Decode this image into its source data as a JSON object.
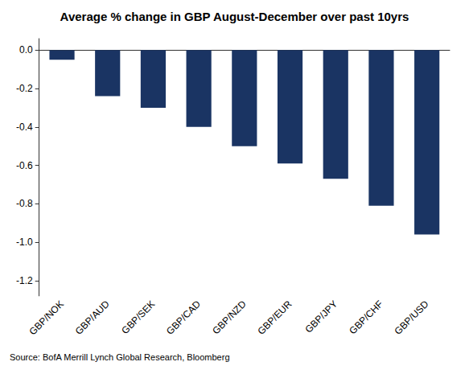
{
  "chart_data": {
    "type": "bar",
    "title": "Average % change in GBP August-December over past 10yrs",
    "categories": [
      "GBP/NOK",
      "GBP/AUD",
      "GBP/SEK",
      "GBP/CAD",
      "GBP/NZD",
      "GBP/EUR",
      "GBP/JPY",
      "GBP/CHF",
      "GBP/USD"
    ],
    "values": [
      -0.05,
      -0.24,
      -0.3,
      -0.4,
      -0.5,
      -0.59,
      -0.67,
      -0.81,
      -0.96
    ],
    "color": "#1a3463",
    "ylim": [
      -1.28,
      0.06
    ],
    "yticks": [
      {
        "value": 0,
        "label": "0.0"
      },
      -0.2,
      -0.4,
      -0.6,
      -0.8,
      {
        "value": -1,
        "label": "-1.0"
      },
      -1.2
    ],
    "grid": false,
    "annotations": [
      "Source: BofA Merrill Lynch Global Research, Bloomberg"
    ]
  }
}
